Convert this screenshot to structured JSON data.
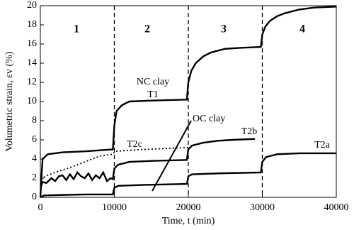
{
  "chart_data": {
    "type": "line",
    "x_label": "Time, t (min)",
    "y_label": "Volumetric strain, εv (%)",
    "xlim": [
      0,
      40000
    ],
    "ylim": [
      0,
      20
    ],
    "xticks": [
      0,
      10000,
      20000,
      30000,
      40000
    ],
    "yticks": [
      0,
      2,
      4,
      6,
      8,
      10,
      12,
      14,
      16,
      18,
      20
    ],
    "stage_boundaries": [
      10000,
      20000,
      30000
    ],
    "stage_labels": [
      "1",
      "2",
      "3",
      "4"
    ],
    "annotations": [
      "NC clay",
      "T1",
      "OC clay",
      "T2c",
      "T2b",
      "T2a"
    ],
    "series": [
      {
        "name": "T1",
        "color": "#000000",
        "dash": "solid",
        "x": [
          0,
          300,
          1000,
          3000,
          6000,
          9800,
          10000,
          10300,
          11000,
          12000,
          15000,
          19800,
          20000,
          20400,
          21000,
          22000,
          23000,
          25000,
          27000,
          29800,
          30000,
          30400,
          31000,
          32000,
          33000,
          35000,
          37000,
          40000
        ],
        "values": [
          0,
          4.0,
          4.5,
          4.7,
          4.8,
          5.0,
          7.5,
          9.0,
          9.6,
          10.0,
          10.1,
          10.2,
          12.0,
          13.2,
          14.0,
          14.7,
          15.1,
          15.5,
          15.6,
          15.7,
          17.0,
          17.8,
          18.4,
          18.9,
          19.2,
          19.6,
          19.8,
          19.9
        ]
      },
      {
        "name": "T2c",
        "color": "#000000",
        "dash": "dotted",
        "x": [
          0,
          200,
          1000,
          2000,
          4000,
          6000,
          8000,
          9800,
          10100,
          12000,
          14000,
          17000,
          20000
        ],
        "values": [
          0,
          2.0,
          2.3,
          2.6,
          3.1,
          3.7,
          4.3,
          4.5,
          4.8,
          4.9,
          5.0,
          5.1,
          5.2
        ]
      },
      {
        "name": "T2b",
        "color": "#000000",
        "dash": "solid",
        "x": [
          0,
          300,
          800,
          1500,
          2000,
          2500,
          3000,
          3500,
          4000,
          4500,
          5000,
          5500,
          6000,
          6500,
          7000,
          7500,
          8000,
          8500,
          9000,
          9500,
          9800,
          10000,
          10500,
          12000,
          15000,
          19800,
          20000,
          20500,
          22000,
          24000,
          26000,
          29000
        ],
        "values": [
          1.0,
          1.6,
          1.5,
          2.0,
          1.7,
          2.2,
          2.3,
          1.8,
          2.4,
          1.9,
          2.6,
          2.2,
          2.0,
          2.5,
          1.8,
          2.3,
          2.0,
          2.6,
          1.7,
          2.0,
          1.9,
          3.0,
          3.4,
          3.7,
          3.8,
          3.9,
          5.0,
          5.4,
          5.7,
          5.9,
          6.0,
          6.1
        ]
      },
      {
        "name": "T2a",
        "color": "#000000",
        "dash": "solid",
        "x": [
          0,
          500,
          3000,
          6000,
          9800,
          10000,
          10500,
          14000,
          19800,
          20000,
          20500,
          24000,
          29800,
          30000,
          30500,
          32000,
          35000,
          40000
        ],
        "values": [
          0,
          0.2,
          0.25,
          0.3,
          0.3,
          1.0,
          1.2,
          1.3,
          1.4,
          2.2,
          2.4,
          2.5,
          2.6,
          3.7,
          4.2,
          4.5,
          4.6,
          4.6
        ]
      }
    ]
  }
}
